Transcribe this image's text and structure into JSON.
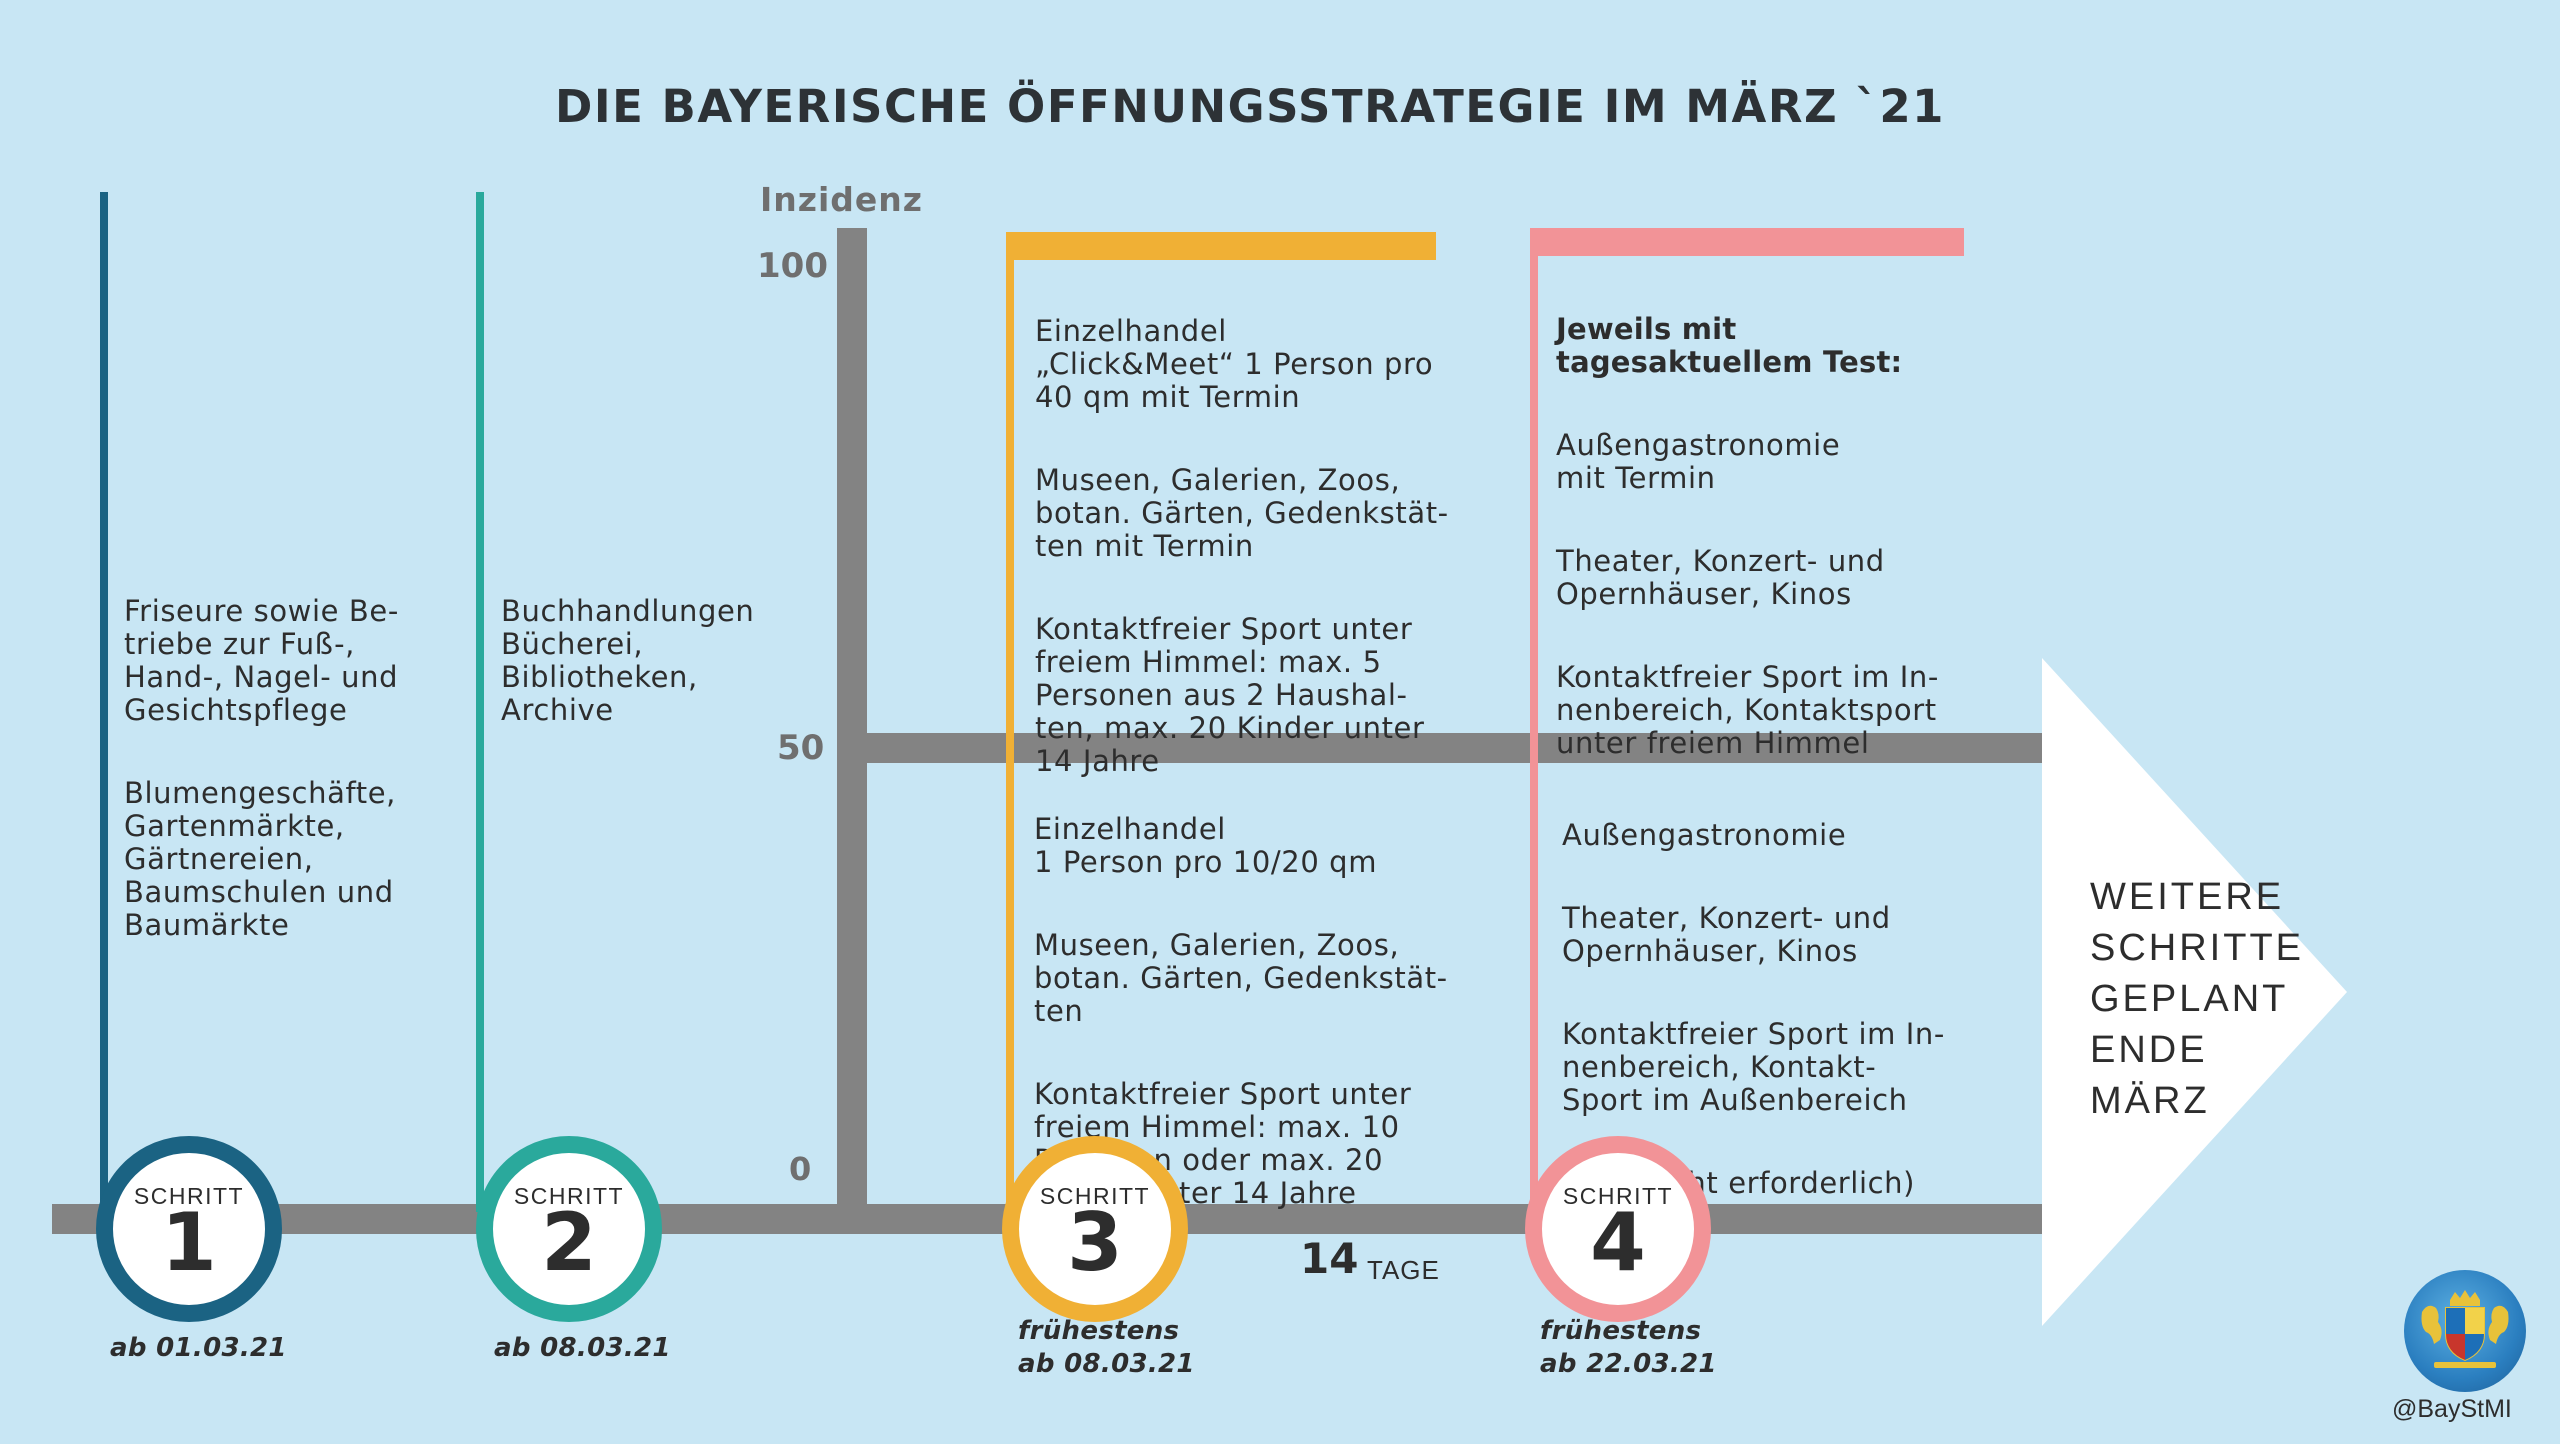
{
  "title": "DIE BAYERISCHE ÖFFNUNGSSTRATEGIE IM MÄRZ `21",
  "axis": {
    "label": "Inzidenz",
    "ticks": [
      "100",
      "50",
      "0"
    ]
  },
  "colors": {
    "background": "#c8e6f4",
    "axis": "#838383",
    "step1": "#1b6383",
    "step2": "#2aa99c",
    "step3": "#f0b035",
    "step4": "#f29397",
    "arrow": "#ffffff"
  },
  "steps": [
    {
      "label": "SCHRITT",
      "number": "1",
      "date": "ab 01.03.21",
      "text": [
        "Friseure sowie Be-\ntriebe zur Fuß-,\nHand-, Nagel- und\nGesichtspflege",
        "Blumengeschäfte,\nGartenmärkte,\nGärtnereien,\nBaumschulen und\nBaumärkte"
      ]
    },
    {
      "label": "SCHRITT",
      "number": "2",
      "date": "ab 08.03.21",
      "text": [
        "Buchhandlungen\nBücherei,\nBibliotheken,\nArchive"
      ]
    },
    {
      "label": "SCHRITT",
      "number": "3",
      "date": "frühestens\nab 08.03.21",
      "above_50": [
        "Einzelhandel\n„Click&Meet“ 1 Person pro\n40 qm mit Termin",
        "Museen, Galerien, Zoos,\nbotan. Gärten, Gedenkstät-\nten mit Termin",
        "Kontaktfreier Sport unter\nfreiem Himmel: max. 5\nPersonen aus 2 Haushal-\nten,  max. 20 Kinder unter\n14 Jahre"
      ],
      "below_50": [
        "Einzelhandel\n1 Person pro 10/20 qm",
        "Museen, Galerien, Zoos,\nbotan. Gärten, Gedenkstät-\nten",
        "Kontaktfreier Sport unter\nfreiem Himmel: max. 10\nPersonen oder max. 20\nKinder unter 14 Jahre"
      ]
    },
    {
      "label": "SCHRITT",
      "number": "4",
      "date": "frühestens\nab 22.03.21",
      "above_50_heading": "Jeweils mit\ntagesaktuellem Test:",
      "above_50": [
        "Außengastronomie\nmit Termin",
        "Theater, Konzert- und\nOpernhäuser, Kinos",
        "Kontaktfreier Sport im In-\nnenbereich, Kontaktsport\nunter freiem Himmel"
      ],
      "below_50": [
        "Außengastronomie",
        "Theater, Konzert- und\nOpernhäuser, Kinos",
        "Kontaktfreier Sport im In-\nnenbereich, Kontakt-\nSport im Außenbereich",
        "(Test nicht erforderlich)"
      ]
    }
  ],
  "interval": {
    "number": "14",
    "unit": "TAGE"
  },
  "arrow_text": "WEITERE\nSCHRITTE\nGEPLANT\nENDE\nMÄRZ",
  "logo": {
    "icon": "bavarian-coat-of-arms-icon",
    "handle": "@BayStMI"
  }
}
